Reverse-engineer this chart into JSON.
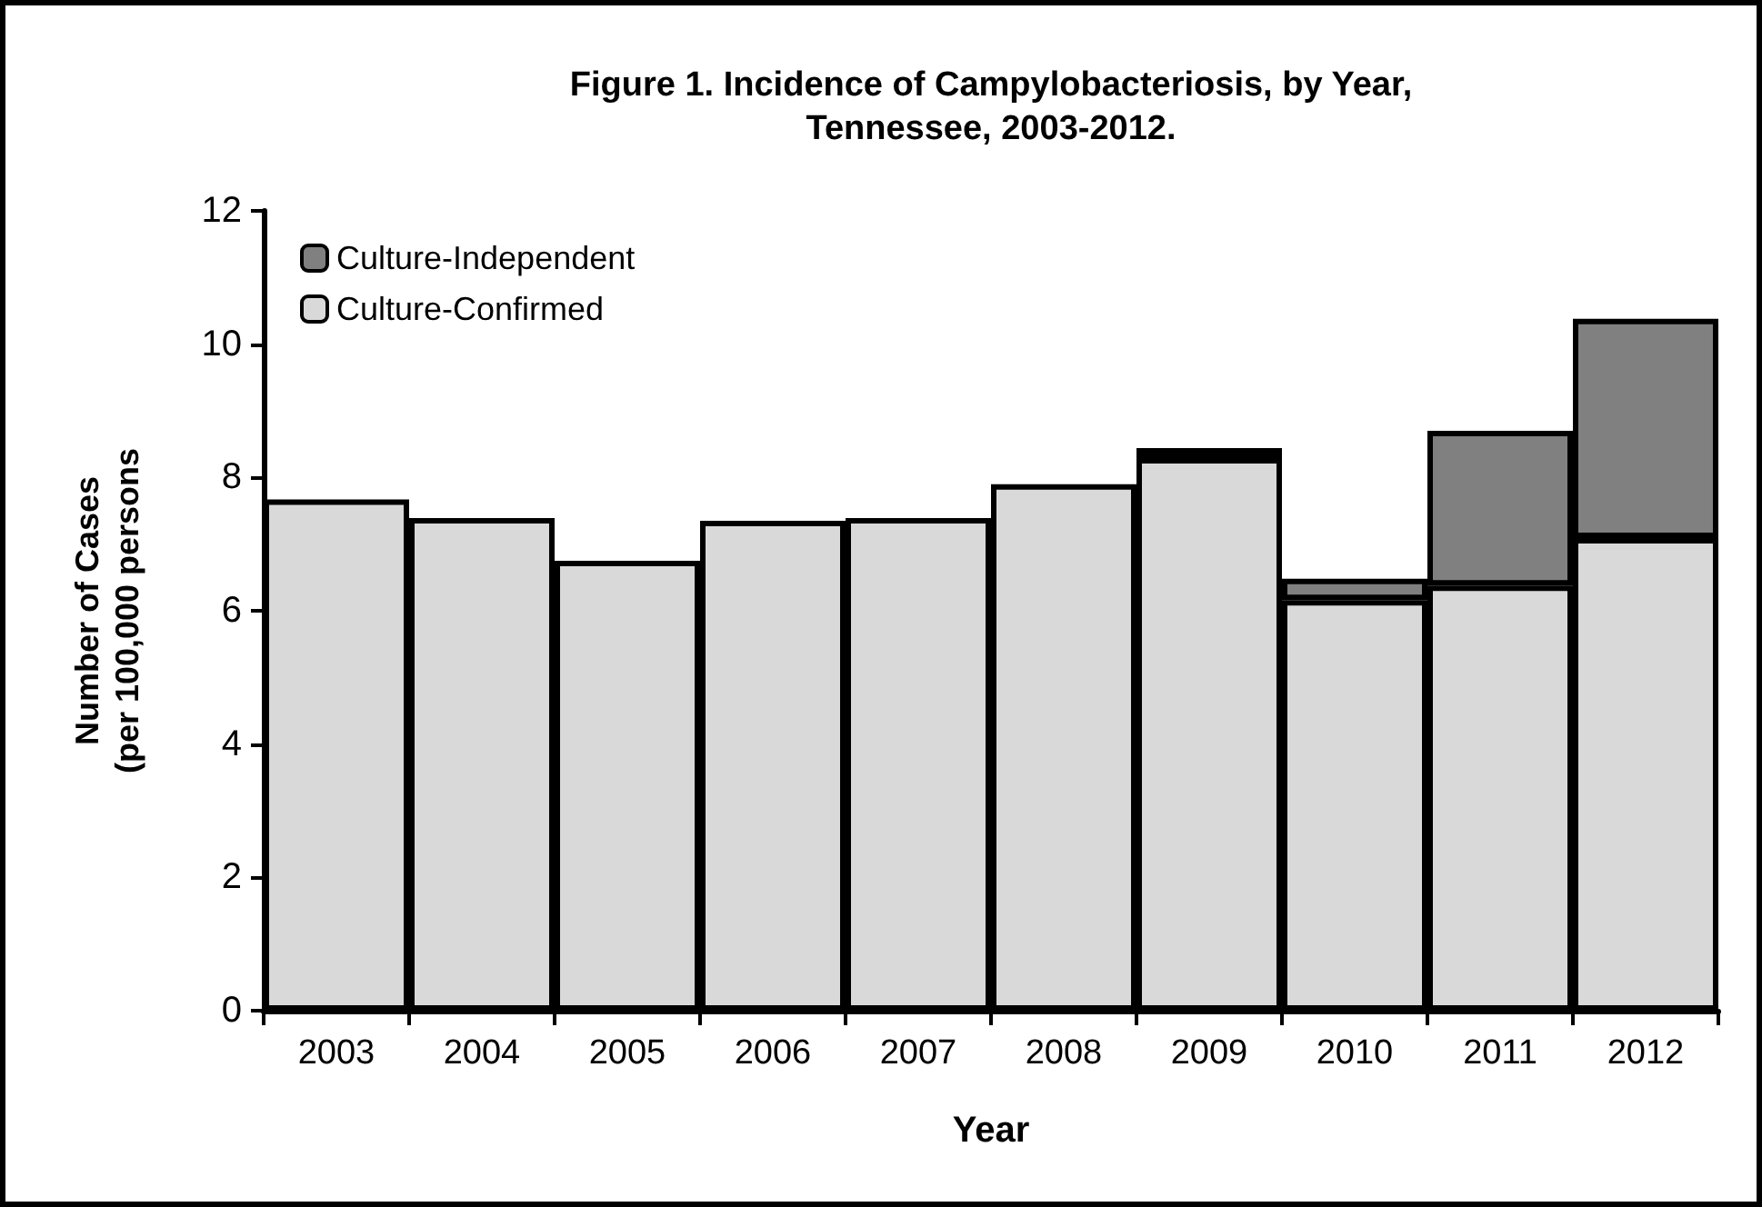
{
  "chart_data": {
    "type": "bar",
    "title": "Figure 1. Incidence of Campylobacteriosis, by Year,\nTennessee, 2003-2012.",
    "xlabel": "Year",
    "ylabel": "Number of Cases\n(per 100,000 persons",
    "categories": [
      "2003",
      "2004",
      "2005",
      "2006",
      "2007",
      "2008",
      "2009",
      "2010",
      "2011",
      "2012"
    ],
    "stacked": true,
    "series": [
      {
        "name": "Culture-Confirmed",
        "color": "#d9d9d9",
        "values": [
          7.67,
          7.39,
          6.75,
          7.35,
          7.39,
          7.9,
          8.29,
          6.16,
          6.38,
          7.09
        ]
      },
      {
        "name": "Culture-Independent",
        "color": "#808080",
        "values": [
          null,
          null,
          null,
          null,
          null,
          null,
          0.15,
          0.32,
          2.32,
          3.29
        ]
      }
    ],
    "ylim": [
      0,
      12
    ],
    "yticks": [
      0,
      2,
      4,
      6,
      8,
      10,
      12
    ],
    "grid": false,
    "legend": "top left"
  }
}
